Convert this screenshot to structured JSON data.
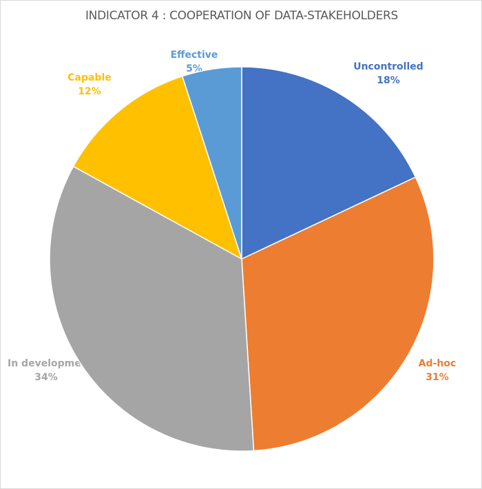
{
  "chart_data": {
    "type": "pie",
    "title": "INDICATOR 4 : COOPERATION OF DATA-STAKEHOLDERS",
    "start_angle": "12 o'clock, clockwise",
    "legend": "none (data labels)",
    "slices": [
      {
        "label": "Uncontrolled",
        "value": 18,
        "value_label": "18%",
        "color": "#4472C4"
      },
      {
        "label": "Ad-hoc",
        "value": 31,
        "value_label": "31%",
        "color": "#ED7D31"
      },
      {
        "label": "In development",
        "value": 34,
        "value_label": "34%",
        "color": "#A5A5A5"
      },
      {
        "label": "Capable",
        "value": 12,
        "value_label": "12%",
        "color": "#FFC000"
      },
      {
        "label": "Effective",
        "value": 5,
        "value_label": "5%",
        "color": "#5B9BD5"
      }
    ]
  }
}
